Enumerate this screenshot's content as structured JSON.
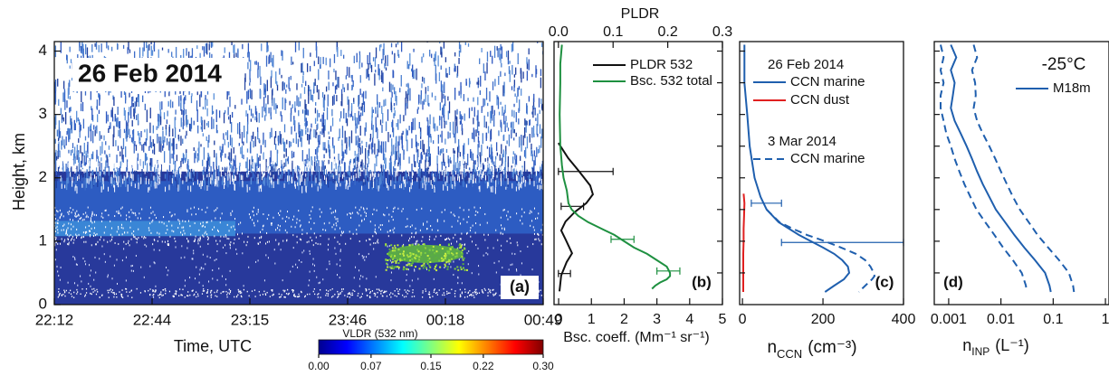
{
  "chart_data": [
    {
      "type": "heatmap",
      "title": "26 Feb 2014",
      "label": "(a)",
      "xlabel": "Time, UTC",
      "ylabel": "Height, km",
      "categories": [
        "22:12",
        "22:44",
        "23:15",
        "23:46",
        "00:18",
        "00:49"
      ],
      "ylim": [
        0,
        4.15
      ],
      "yticks": [
        0,
        1,
        2,
        3,
        4
      ],
      "colorbar": {
        "label": "VLDR (532 nm)",
        "clim": [
          0,
          0.3
        ],
        "ticks": [
          {
            "value": 0,
            "label": "0.00"
          },
          {
            "value": 0.07,
            "label": "0.07"
          },
          {
            "value": 0.15,
            "label": "0.15"
          },
          {
            "value": 0.22,
            "label": "0.22"
          },
          {
            "value": 0.3,
            "label": "0.30"
          }
        ],
        "colors": [
          "#00008f",
          "#0000ff",
          "#0080ff",
          "#00ffff",
          "#80ff80",
          "#ffff00",
          "#ff8000",
          "#ff0000",
          "#800000"
        ]
      }
    },
    {
      "type": "profile",
      "label": "(b)",
      "xlabel": "Bsc. coeff. (Mm⁻¹ sr⁻¹)",
      "x2label": "PLDR",
      "xlim": [
        -0.14,
        5
      ],
      "xticks": [
        0,
        1,
        2,
        3,
        4,
        5
      ],
      "x2lim": [
        -0.008,
        0.3
      ],
      "x2ticks": [
        {
          "value": 0,
          "label": "0.0"
        },
        0.1,
        0.2,
        0.3
      ],
      "ylim": [
        0,
        4.15
      ],
      "yticks": [
        0.5,
        1,
        1.5,
        2,
        2.5,
        3,
        3.5,
        4
      ],
      "series": [
        {
          "name": "PLDR 532",
          "color": "#111111",
          "axis": "x2",
          "y": [
            2.55,
            2.31,
            2.1,
            1.88,
            1.74,
            1.6,
            1.46,
            1.31,
            1.17,
            1.03,
            0.81,
            0.67,
            0.46,
            0.21
          ],
          "values": [
            0,
            0.018,
            0.038,
            0.058,
            0.063,
            0.051,
            0.03,
            0.013,
            0.005,
            0.013,
            0.025,
            0.015,
            0.005,
            0.002
          ],
          "errorbars": [
            {
              "y": 2.1,
              "value": 0.04,
              "low": 0,
              "high": 0.1
            },
            {
              "y": 1.55,
              "value": 0.04,
              "low": 0.005,
              "high": 0.046
            },
            {
              "y": 0.49,
              "value": 0.01,
              "low": 0,
              "high": 0.022
            }
          ]
        },
        {
          "name": "Bsc. 532 total",
          "color": "#1e9040",
          "y": [
            4.1,
            3.8,
            3.5,
            3.0,
            2.5,
            2.2,
            2.0,
            1.8,
            1.6,
            1.5,
            1.4,
            1.3,
            1.2,
            1.1,
            1.0,
            0.9,
            0.8,
            0.7,
            0.6,
            0.5,
            0.45,
            0.4,
            0.35,
            0.3,
            0.25
          ],
          "values": [
            0.1,
            0.05,
            0.05,
            0.03,
            0.05,
            0.1,
            0.15,
            0.25,
            0.3,
            0.4,
            0.6,
            0.9,
            1.3,
            1.7,
            2.0,
            2.3,
            2.7,
            3.0,
            3.3,
            3.4,
            3.4,
            3.3,
            3.1,
            2.95,
            2.85
          ],
          "errorbars": [
            {
              "y": 1.03,
              "value": 1.95,
              "low": 1.6,
              "high": 2.3
            },
            {
              "y": 0.53,
              "value": 3.35,
              "low": 3.0,
              "high": 3.7
            }
          ]
        }
      ]
    },
    {
      "type": "profile",
      "label": "(c)",
      "xlabel": "n",
      "xlabel_sub": "CCN",
      "xlabel_unit": "(cm⁻³)",
      "xlim": [
        -7,
        400
      ],
      "xticks": [
        0,
        200,
        400
      ],
      "ylim": [
        0,
        4.15
      ],
      "yticks": [
        0.5,
        1,
        1.5,
        2,
        2.5,
        3,
        3.5,
        4
      ],
      "legend_titles": [
        "26 Feb 2014",
        "3 Mar 2014"
      ],
      "series": [
        {
          "name": "CCN marine",
          "color": "#1f5fae",
          "y": [
            4.1,
            3.5,
            3.0,
            2.5,
            2.0,
            1.7,
            1.5,
            1.3,
            1.2,
            1.1,
            1.0,
            0.9,
            0.8,
            0.7,
            0.6,
            0.5,
            0.4,
            0.3,
            0.2
          ],
          "values": [
            5,
            5,
            12,
            18,
            30,
            45,
            60,
            90,
            115,
            140,
            170,
            200,
            228,
            248,
            262,
            265,
            252,
            228,
            205
          ],
          "errorbars": [
            {
              "y": 1.6,
              "value": 55,
              "low": 22,
              "high": 97
            },
            {
              "y": 0.98,
              "value": 180,
              "low": 97,
              "high": 400
            }
          ]
        },
        {
          "name": "CCN dust",
          "color": "#e02020",
          "y": [
            1.75,
            1.6,
            1.4,
            1.2,
            1.0,
            0.8,
            0.6,
            0.4,
            0.2
          ],
          "values": [
            3,
            5,
            4,
            3,
            3,
            2,
            2,
            2,
            2
          ]
        },
        {
          "name": "CCN marine",
          "color": "#1f5fae",
          "linestyle": "dashed",
          "y": [
            1.5,
            1.3,
            1.2,
            1.1,
            1.0,
            0.9,
            0.8,
            0.7,
            0.6,
            0.5,
            0.45,
            0.4,
            0.3,
            0.2
          ],
          "values": [
            60,
            92,
            124,
            160,
            205,
            245,
            282,
            305,
            318,
            326,
            328,
            322,
            305,
            289
          ]
        }
      ]
    },
    {
      "type": "profile",
      "label": "(d)",
      "annotation": "-25°C",
      "xlabel": "n",
      "xlabel_sub": "INP",
      "xlabel_unit": "(L⁻¹)",
      "xscale": "log",
      "xlim": [
        0.00053,
        1.17
      ],
      "xticks": [
        0.001,
        0.01,
        0.1,
        1
      ],
      "ylim": [
        0,
        4.15
      ],
      "yticks": [
        0.5,
        1,
        1.5,
        2,
        2.5,
        3,
        3.5,
        4
      ],
      "series": [
        {
          "color": "#1f5fae",
          "linestyle": "dashed",
          "y": [
            4.1,
            3.9,
            3.7,
            3.5,
            3.3,
            3.1,
            2.9,
            2.7,
            2.5,
            2.3,
            2.1,
            1.9,
            1.7,
            1.5,
            1.3,
            1.1,
            0.9,
            0.7,
            0.5,
            0.3,
            0.2
          ],
          "values": [
            0.0007,
            0.0008,
            0.0007,
            0.0008,
            0.0007,
            0.0007,
            0.0008,
            0.0009,
            0.0011,
            0.0013,
            0.0016,
            0.002,
            0.0026,
            0.0034,
            0.005,
            0.0075,
            0.011,
            0.017,
            0.025,
            0.03,
            0.031
          ]
        },
        {
          "name": "M18m",
          "color": "#1f5fae",
          "y": [
            4.1,
            3.9,
            3.7,
            3.5,
            3.3,
            3.1,
            2.9,
            2.7,
            2.5,
            2.3,
            2.1,
            1.9,
            1.7,
            1.5,
            1.3,
            1.1,
            0.9,
            0.7,
            0.5,
            0.3,
            0.2
          ],
          "values": [
            0.0011,
            0.0014,
            0.0011,
            0.0013,
            0.0012,
            0.0011,
            0.0013,
            0.0017,
            0.0022,
            0.0028,
            0.0035,
            0.0045,
            0.006,
            0.008,
            0.012,
            0.018,
            0.028,
            0.045,
            0.07,
            0.085,
            0.09
          ]
        },
        {
          "color": "#1f5fae",
          "linestyle": "dashed",
          "y": [
            4.1,
            3.9,
            3.7,
            3.5,
            3.3,
            3.1,
            2.9,
            2.7,
            2.5,
            2.3,
            2.1,
            1.9,
            1.7,
            1.5,
            1.3,
            1.1,
            0.9,
            0.7,
            0.5,
            0.3,
            0.2
          ],
          "values": [
            0.003,
            0.0035,
            0.0028,
            0.0032,
            0.0033,
            0.003,
            0.0035,
            0.0045,
            0.006,
            0.0078,
            0.01,
            0.013,
            0.017,
            0.023,
            0.034,
            0.05,
            0.08,
            0.13,
            0.2,
            0.24,
            0.25
          ]
        }
      ]
    }
  ]
}
